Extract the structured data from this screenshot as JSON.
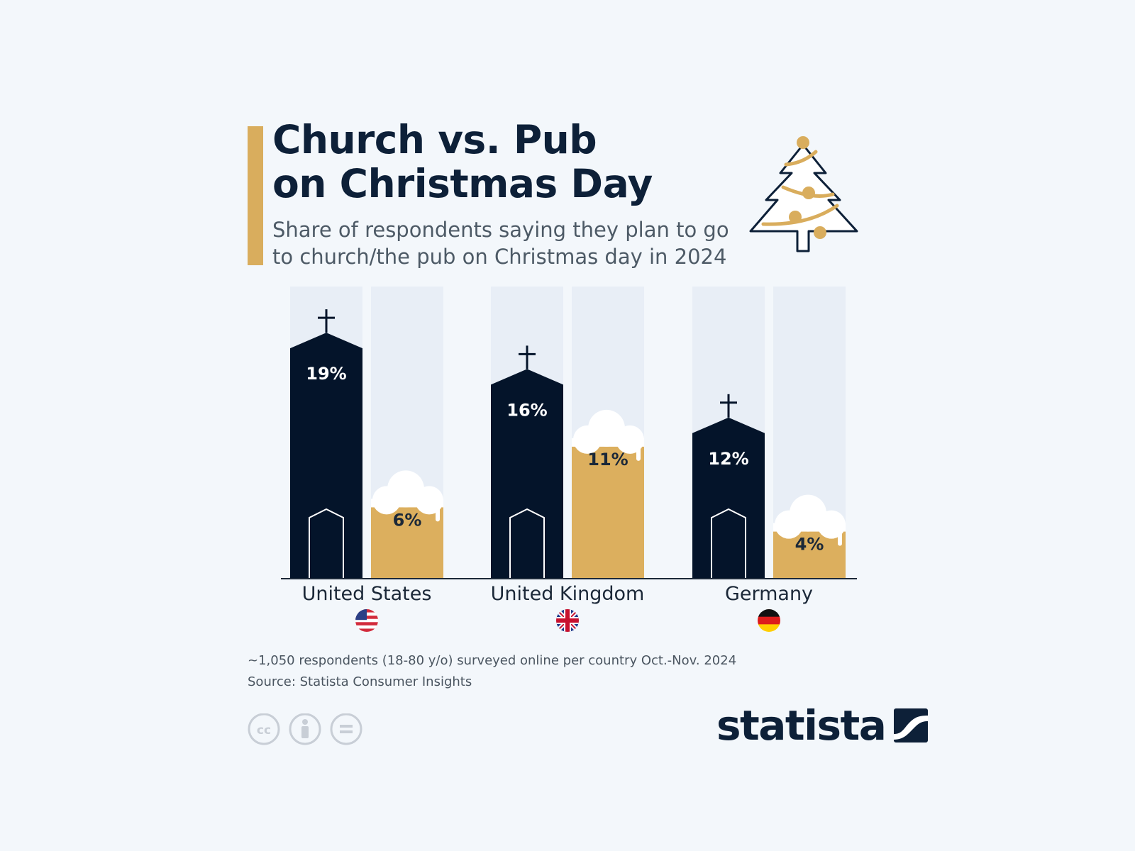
{
  "header": {
    "title": "Church vs. Pub\non Christmas Day",
    "subtitle": "Share of respondents saying they plan to go\nto church/the pub on Christmas day in 2024"
  },
  "colors": {
    "church": "#04142a",
    "pub": "#dcaf5e",
    "accent": "#d9ad5d",
    "background": "#f3f7fb",
    "track": "#e8eef6",
    "foam": "#ffffff"
  },
  "chart_data": {
    "type": "bar",
    "title": "Church vs. Pub on Christmas Day",
    "subtitle": "Share of respondents saying they plan to go to church/the pub on Christmas day in 2024",
    "categories": [
      "United States",
      "United Kingdom",
      "Germany"
    ],
    "flags": [
      "us-flag-icon",
      "uk-flag-icon",
      "germany-flag-icon"
    ],
    "series": [
      {
        "key": "church",
        "values": [
          19,
          16,
          12
        ],
        "labels": [
          "19%",
          "16%",
          "12%"
        ],
        "icon": "church-icon"
      },
      {
        "key": "pub",
        "values": [
          6,
          11,
          4
        ],
        "labels": [
          "6%",
          "11%",
          "4%"
        ],
        "icon": "beer-glass-icon"
      }
    ],
    "unit": "%",
    "grid": false,
    "legend": "none"
  },
  "footer": {
    "note": "~1,050 respondents (18-80 y/o) surveyed online per country Oct.-Nov. 2024",
    "source": "Source: Statista Consumer Insights",
    "licence_icons": [
      "cc-icon",
      "attribution-icon",
      "no-derivatives-icon"
    ],
    "brand": "statista"
  },
  "decorations": {
    "header_icon": "christmas-tree-icon"
  }
}
